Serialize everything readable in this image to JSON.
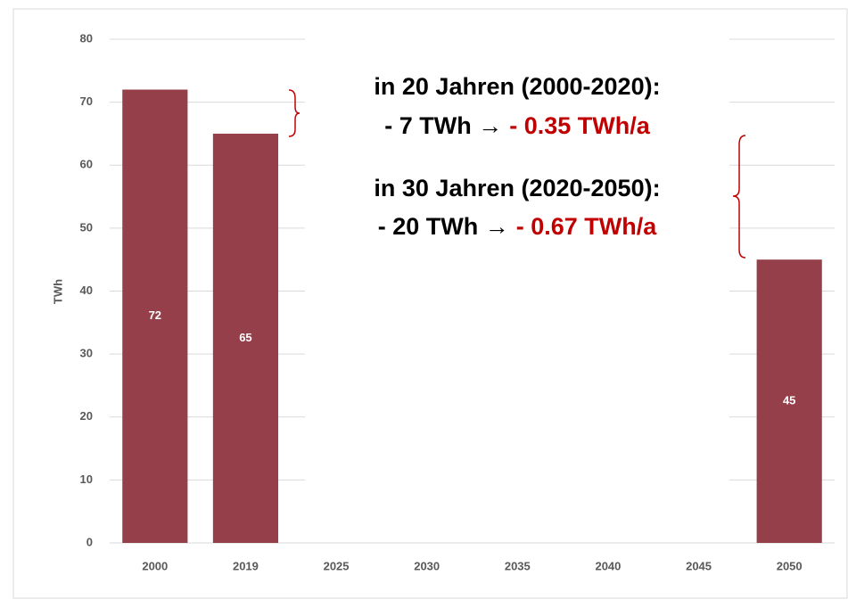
{
  "chart_data": {
    "type": "bar",
    "y_label": "TWh",
    "categories": [
      "2000",
      "2019",
      "2025",
      "2030",
      "2035",
      "2040",
      "2045",
      "2050"
    ],
    "values": [
      72,
      65,
      null,
      null,
      null,
      null,
      null,
      45
    ],
    "color": "#953f4a",
    "ylim": [
      0,
      80
    ],
    "yticks": [
      0,
      10,
      20,
      30,
      40,
      50,
      60,
      70,
      80
    ],
    "grid": true,
    "annotations": [
      [
        {
          "text": "in 20 Jahren (2000-2020):",
          "color": "#000000"
        }
      ],
      [
        {
          "text": "- 7 TWh →",
          "color": "#000000"
        },
        {
          "text": "- 0.35 TWh/a",
          "color": "#c00000"
        }
      ],
      [
        {
          "text": "in 30 Jahren (2020-2050):",
          "color": "#000000"
        }
      ],
      [
        {
          "text": "- 20 TWh →",
          "color": "#000000"
        },
        {
          "text": "- 0.67 TWh/a",
          "color": "#c00000"
        }
      ]
    ]
  }
}
